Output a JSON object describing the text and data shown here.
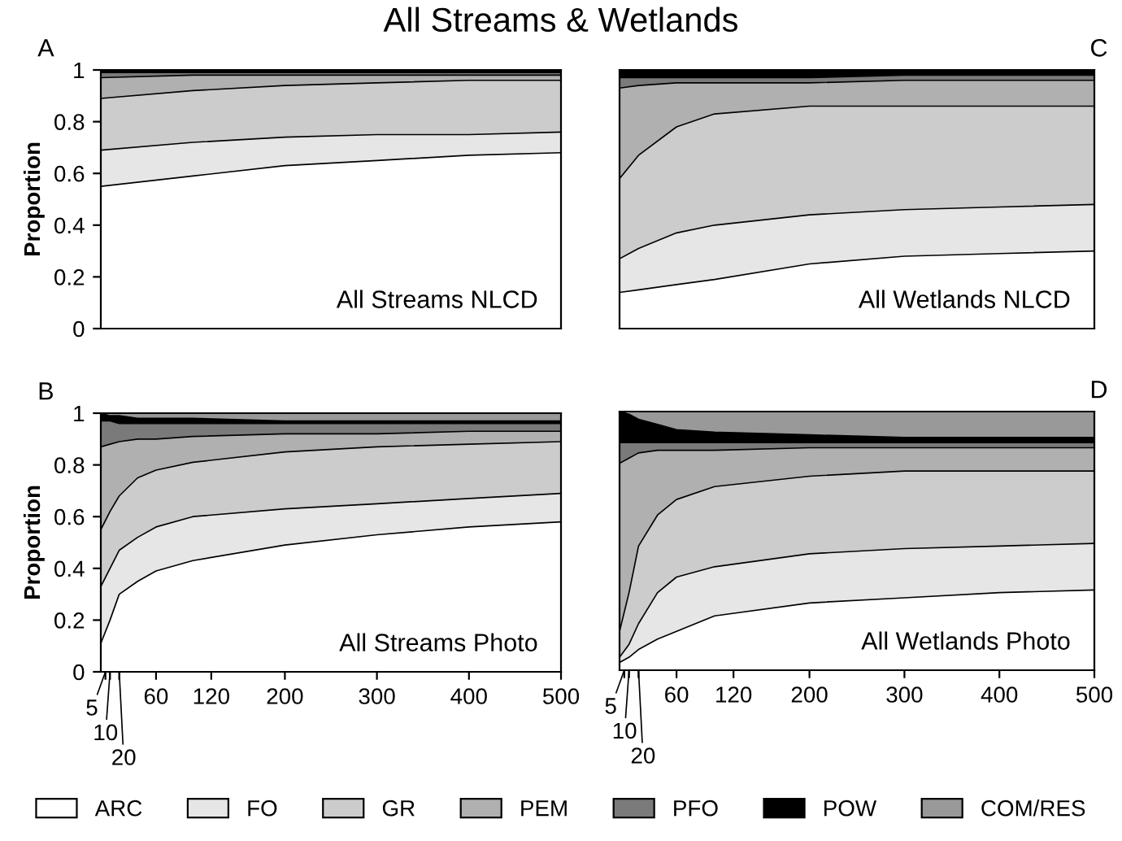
{
  "chart_data": [
    {
      "type": "area",
      "stacked": true,
      "title": "All Streams & Wetlands",
      "ylabel": "Proportion",
      "annotations": [
        "A",
        "All Streams NLCD"
      ],
      "x": [
        0,
        100,
        200,
        300,
        400,
        500
      ],
      "xlim": [
        0,
        500
      ],
      "ylim": [
        0,
        1
      ],
      "yticks": [
        0,
        0.2,
        0.4,
        0.6,
        0.8,
        1
      ],
      "tick_labels": "y",
      "series": [
        {
          "color": "#ffffff",
          "values": [
            0.55,
            0.59,
            0.63,
            0.65,
            0.67,
            0.68
          ]
        },
        {
          "color": "#e6e6e6",
          "values": [
            0.14,
            0.13,
            0.11,
            0.1,
            0.08,
            0.08
          ]
        },
        {
          "color": "#cccccc",
          "values": [
            0.2,
            0.2,
            0.2,
            0.2,
            0.21,
            0.2
          ]
        },
        {
          "color": "#b0b0b0",
          "values": [
            0.08,
            0.06,
            0.04,
            0.03,
            0.02,
            0.02
          ]
        },
        {
          "color": "#7a7a7a",
          "values": [
            0.02,
            0.01,
            0.01,
            0.01,
            0.01,
            0.01
          ]
        },
        {
          "color": "#000000",
          "values": [
            0.01,
            0.01,
            0.01,
            0.01,
            0.01,
            0.01
          ]
        }
      ]
    },
    {
      "type": "area",
      "stacked": true,
      "annotations": [
        "C",
        "All Wetlands NLCD"
      ],
      "x": [
        0,
        20,
        60,
        100,
        200,
        300,
        400,
        500
      ],
      "xlim": [
        0,
        500
      ],
      "ylim": [
        0,
        1
      ],
      "yticks": [
        0,
        0.2,
        0.4,
        0.6,
        0.8,
        1
      ],
      "tick_labels": false,
      "series": [
        {
          "color": "#ffffff",
          "values": [
            0.14,
            0.15,
            0.17,
            0.19,
            0.25,
            0.28,
            0.29,
            0.3
          ]
        },
        {
          "color": "#e6e6e6",
          "values": [
            0.13,
            0.16,
            0.2,
            0.21,
            0.19,
            0.18,
            0.18,
            0.18
          ]
        },
        {
          "color": "#cccccc",
          "values": [
            0.31,
            0.36,
            0.41,
            0.43,
            0.42,
            0.4,
            0.39,
            0.38
          ]
        },
        {
          "color": "#b0b0b0",
          "values": [
            0.35,
            0.27,
            0.17,
            0.12,
            0.09,
            0.1,
            0.1,
            0.1
          ]
        },
        {
          "color": "#7a7a7a",
          "values": [
            0.04,
            0.03,
            0.02,
            0.02,
            0.02,
            0.02,
            0.02,
            0.02
          ]
        },
        {
          "color": "#000000",
          "values": [
            0.03,
            0.03,
            0.03,
            0.03,
            0.03,
            0.02,
            0.02,
            0.02
          ]
        }
      ]
    },
    {
      "type": "area",
      "stacked": true,
      "ylabel": "Proportion",
      "annotations": [
        "B",
        "All Streams Photo",
        {
          "text": "5",
          "x": 5,
          "y": 0
        },
        {
          "text": "10",
          "x": 10,
          "y": 0
        },
        {
          "text": "20",
          "x": 20,
          "y": 0
        }
      ],
      "legend": "bottom",
      "x": [
        0,
        10,
        20,
        40,
        60,
        100,
        200,
        300,
        400,
        500
      ],
      "xlim": [
        0,
        500
      ],
      "xticks": [
        {
          "value": 5,
          "label": null
        },
        {
          "value": 10,
          "label": null
        },
        {
          "value": 20,
          "label": null
        },
        60,
        120,
        200,
        300,
        400,
        500
      ],
      "ylim": [
        0,
        1
      ],
      "yticks": [
        0,
        0.2,
        0.4,
        0.6,
        0.8,
        1
      ],
      "series": [
        {
          "name": "ARC",
          "color": "#ffffff",
          "values": [
            0.11,
            0.2,
            0.3,
            0.35,
            0.39,
            0.43,
            0.49,
            0.53,
            0.56,
            0.58
          ]
        },
        {
          "name": "FO",
          "color": "#e6e6e6",
          "values": [
            0.22,
            0.2,
            0.17,
            0.17,
            0.17,
            0.17,
            0.14,
            0.12,
            0.11,
            0.11
          ]
        },
        {
          "name": "GR",
          "color": "#cccccc",
          "values": [
            0.22,
            0.22,
            0.21,
            0.23,
            0.22,
            0.21,
            0.22,
            0.22,
            0.21,
            0.2
          ]
        },
        {
          "name": "PEM",
          "color": "#b0b0b0",
          "values": [
            0.32,
            0.26,
            0.21,
            0.15,
            0.12,
            0.1,
            0.07,
            0.05,
            0.05,
            0.04
          ]
        },
        {
          "name": "PFO",
          "color": "#7a7a7a",
          "values": [
            0.1,
            0.09,
            0.07,
            0.06,
            0.06,
            0.05,
            0.04,
            0.04,
            0.03,
            0.03
          ]
        },
        {
          "name": "POW",
          "color": "#000000",
          "values": [
            0.03,
            0.02,
            0.03,
            0.02,
            0.02,
            0.02,
            0.01,
            0.01,
            0.01,
            0.01
          ]
        },
        {
          "name": "COM/RES",
          "color": "#999999",
          "values": [
            0,
            0.01,
            0.01,
            0.02,
            0.02,
            0.02,
            0.03,
            0.03,
            0.03,
            0.03
          ]
        }
      ]
    },
    {
      "type": "area",
      "stacked": true,
      "annotations": [
        "D",
        "All Wetlands Photo",
        {
          "text": "5",
          "x": 5,
          "y": 0
        },
        {
          "text": "10",
          "x": 10,
          "y": 0
        },
        {
          "text": "20",
          "x": 20,
          "y": 0
        }
      ],
      "x": [
        0,
        10,
        20,
        40,
        60,
        100,
        200,
        300,
        400,
        500
      ],
      "xlim": [
        0,
        500
      ],
      "xticks": [
        {
          "value": 5,
          "label": null
        },
        {
          "value": 10,
          "label": null
        },
        {
          "value": 20,
          "label": null
        },
        60,
        120,
        200,
        300,
        400,
        500
      ],
      "ylim": [
        0,
        1
      ],
      "yticks": [
        0,
        0.2,
        0.4,
        0.6,
        0.8,
        1
      ],
      "tick_labels": "x",
      "series": [
        {
          "color": "#ffffff",
          "values": [
            0.03,
            0.05,
            0.08,
            0.12,
            0.15,
            0.21,
            0.26,
            0.28,
            0.3,
            0.31
          ]
        },
        {
          "color": "#e6e6e6",
          "values": [
            0.02,
            0.05,
            0.1,
            0.18,
            0.21,
            0.19,
            0.19,
            0.19,
            0.18,
            0.18
          ]
        },
        {
          "color": "#cccccc",
          "values": [
            0.1,
            0.2,
            0.3,
            0.3,
            0.3,
            0.31,
            0.3,
            0.3,
            0.29,
            0.28
          ]
        },
        {
          "color": "#b0b0b0",
          "values": [
            0.65,
            0.52,
            0.36,
            0.25,
            0.19,
            0.14,
            0.11,
            0.09,
            0.09,
            0.09
          ]
        },
        {
          "color": "#7a7a7a",
          "values": [
            0.08,
            0.06,
            0.04,
            0.03,
            0.03,
            0.03,
            0.02,
            0.02,
            0.02,
            0.02
          ]
        },
        {
          "color": "#000000",
          "values": [
            0.12,
            0.11,
            0.09,
            0.07,
            0.05,
            0.04,
            0.03,
            0.02,
            0.02,
            0.02
          ]
        },
        {
          "color": "#999999",
          "values": [
            0,
            0.01,
            0.03,
            0.05,
            0.07,
            0.08,
            0.09,
            0.1,
            0.1,
            0.1
          ]
        }
      ]
    }
  ]
}
